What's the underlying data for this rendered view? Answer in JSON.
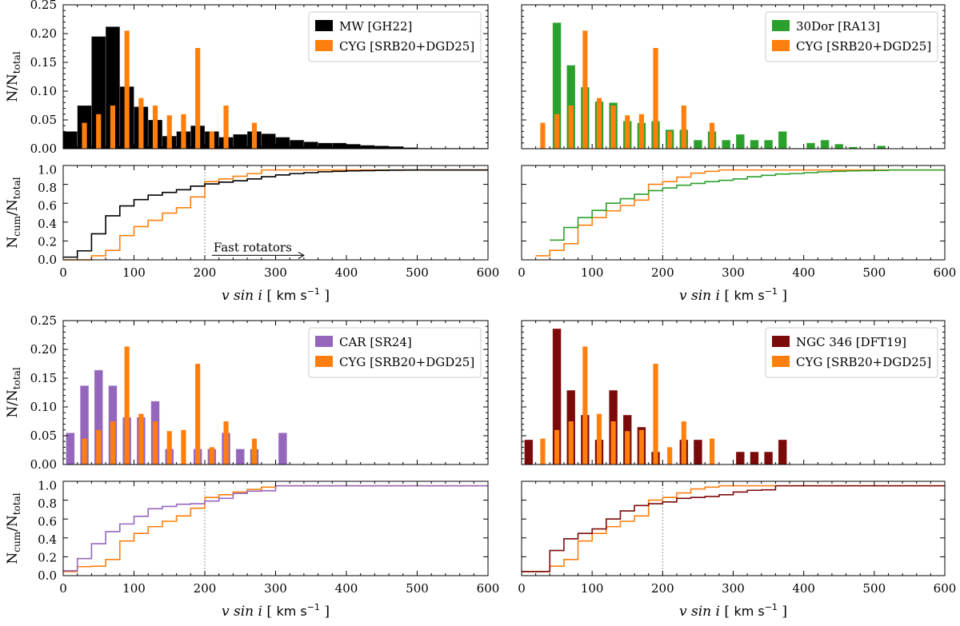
{
  "figure": {
    "colors": {
      "MW": "#000000",
      "30Dor": "#2ca02c",
      "CAR": "#9467bd",
      "NGC346": "#7b0a0a",
      "CYG": "#ff7f0e",
      "refline": "#888888"
    }
  },
  "chart_data": [
    {
      "type": "bar",
      "panel": "top-left-histogram",
      "xlim": [
        0,
        600
      ],
      "ylim": [
        0,
        0.25
      ],
      "yticks": [
        "0.00",
        "0.05",
        "0.10",
        "0.15",
        "0.20",
        "0.25"
      ],
      "ylabel": {
        "base": "N/N",
        "sub": "total"
      },
      "legend": {
        "placement": "top-right",
        "entries": [
          "MW [GH22]",
          "CYG [SRB20+DGD25]"
        ]
      },
      "series": [
        {
          "name": "MW [GH22]",
          "color_key": "MW",
          "bin_width": 20,
          "x": [
            10,
            30,
            50,
            70,
            90,
            110,
            130,
            150,
            170,
            190,
            210,
            230,
            250,
            270,
            290,
            310,
            330,
            350,
            370,
            390,
            410,
            430,
            450,
            470,
            490,
            510,
            530,
            550,
            570,
            590
          ],
          "values": [
            0.03,
            0.075,
            0.195,
            0.212,
            0.108,
            0.073,
            0.05,
            0.022,
            0.03,
            0.04,
            0.03,
            0.02,
            0.025,
            0.03,
            0.026,
            0.02,
            0.015,
            0.012,
            0.01,
            0.01,
            0.008,
            0.006,
            0.005,
            0.004,
            0.002,
            0.001,
            0.001,
            0.001,
            0.001,
            0.001
          ]
        },
        {
          "name": "CYG [SRB20+DGD25]",
          "color_key": "CYG",
          "bin_width": 7,
          "x": [
            30,
            50,
            70,
            90,
            110,
            130,
            150,
            170,
            190,
            210,
            230,
            270
          ],
          "values": [
            0.045,
            0.06,
            0.075,
            0.205,
            0.088,
            0.075,
            0.058,
            0.06,
            0.175,
            0.03,
            0.075,
            0.045
          ]
        }
      ]
    },
    {
      "type": "line",
      "panel": "top-left-cumulative",
      "xlim": [
        0,
        600
      ],
      "ylim": [
        0,
        1.05
      ],
      "xticks": [
        "0",
        "100",
        "200",
        "300",
        "400",
        "500",
        "600"
      ],
      "yticks": [
        "0.0",
        "0.2",
        "0.4",
        "0.6",
        "0.8",
        "1.0"
      ],
      "xlabel": {
        "main": "v sin i",
        "unit_base": "km s",
        "unit_exp": "−1"
      },
      "ylabel": {
        "base": "N",
        "sub1": "cum",
        "mid": "/N",
        "sub2": "total"
      },
      "vline_x": 200,
      "annotation": {
        "text": "Fast rotators",
        "x_from": 210,
        "x_to": 340,
        "y": 0.05
      },
      "series": [
        {
          "name": "MW [GH22]",
          "color_key": "MW",
          "x": [
            0,
            20,
            40,
            60,
            80,
            100,
            120,
            140,
            160,
            180,
            200,
            220,
            240,
            260,
            280,
            300,
            320,
            340,
            360,
            380,
            400,
            420,
            440,
            460,
            480,
            500,
            520,
            540,
            560,
            600
          ],
          "values": [
            0.03,
            0.1,
            0.29,
            0.49,
            0.6,
            0.67,
            0.72,
            0.75,
            0.78,
            0.82,
            0.845,
            0.865,
            0.88,
            0.9,
            0.925,
            0.945,
            0.96,
            0.97,
            0.98,
            0.985,
            0.99,
            0.993,
            0.996,
            0.998,
            0.999,
            1.0,
            1.0,
            1.0,
            1.0,
            1.0
          ]
        },
        {
          "name": "CYG [SRB20+DGD25]",
          "color_key": "CYG",
          "x": [
            0,
            40,
            60,
            80,
            100,
            120,
            140,
            160,
            180,
            200,
            220,
            240,
            260,
            280,
            600
          ],
          "values": [
            0.0,
            0.045,
            0.105,
            0.27,
            0.37,
            0.44,
            0.52,
            0.58,
            0.7,
            0.87,
            0.9,
            0.93,
            0.96,
            1.0,
            1.0
          ]
        }
      ]
    },
    {
      "type": "bar",
      "panel": "top-right-histogram",
      "xlim": [
        0,
        600
      ],
      "ylim": [
        0,
        0.25
      ],
      "legend": {
        "placement": "top-right",
        "entries": [
          "30Dor [RA13]",
          "CYG [SRB20+DGD25]"
        ]
      },
      "series": [
        {
          "name": "30Dor [RA13]",
          "color_key": "30Dor",
          "bin_width": 12,
          "x": [
            50,
            70,
            90,
            110,
            130,
            150,
            170,
            190,
            210,
            230,
            250,
            270,
            290,
            310,
            330,
            350,
            370,
            390,
            410,
            430,
            450,
            470,
            510
          ],
          "values": [
            0.219,
            0.145,
            0.107,
            0.082,
            0.08,
            0.048,
            0.045,
            0.048,
            0.033,
            0.033,
            0.015,
            0.03,
            0.015,
            0.025,
            0.015,
            0.015,
            0.03,
            0.001,
            0.01,
            0.015,
            0.008,
            0.003,
            0.005
          ]
        },
        {
          "name": "CYG [SRB20+DGD25]",
          "color_key": "CYG",
          "bin_width": 7,
          "x": [
            30,
            50,
            70,
            90,
            110,
            130,
            150,
            170,
            190,
            210,
            230,
            270
          ],
          "values": [
            0.045,
            0.06,
            0.075,
            0.205,
            0.088,
            0.075,
            0.058,
            0.06,
            0.175,
            0.03,
            0.075,
            0.045
          ]
        }
      ]
    },
    {
      "type": "line",
      "panel": "top-right-cumulative",
      "xlim": [
        0,
        600
      ],
      "ylim": [
        0,
        1.05
      ],
      "xticks": [
        "0",
        "100",
        "200",
        "300",
        "400",
        "500",
        "600"
      ],
      "xlabel": {
        "main": "v sin i",
        "unit_base": "km s",
        "unit_exp": "−1"
      },
      "vline_x": 200,
      "series": [
        {
          "name": "30Dor [RA13]",
          "color_key": "30Dor",
          "x": [
            40,
            60,
            80,
            100,
            120,
            140,
            160,
            180,
            200,
            220,
            240,
            260,
            280,
            300,
            320,
            340,
            360,
            380,
            400,
            420,
            440,
            460,
            480,
            500,
            520,
            600
          ],
          "values": [
            0.22,
            0.36,
            0.47,
            0.55,
            0.63,
            0.68,
            0.73,
            0.77,
            0.8,
            0.83,
            0.85,
            0.87,
            0.885,
            0.9,
            0.925,
            0.94,
            0.955,
            0.96,
            0.97,
            0.98,
            0.985,
            0.99,
            0.993,
            0.995,
            1.0,
            1.0
          ]
        },
        {
          "name": "CYG [SRB20+DGD25]",
          "color_key": "CYG",
          "x": [
            20,
            40,
            60,
            80,
            100,
            120,
            140,
            160,
            180,
            200,
            220,
            240,
            260,
            280,
            600
          ],
          "values": [
            0.045,
            0.105,
            0.18,
            0.385,
            0.47,
            0.545,
            0.605,
            0.665,
            0.84,
            0.87,
            0.92,
            0.965,
            0.985,
            1.0,
            1.0
          ]
        }
      ]
    },
    {
      "type": "bar",
      "panel": "bottom-left-histogram",
      "xlim": [
        0,
        600
      ],
      "ylim": [
        0,
        0.25
      ],
      "yticks": [
        "0.00",
        "0.05",
        "0.10",
        "0.15",
        "0.20",
        "0.25"
      ],
      "ylabel": {
        "base": "N/N",
        "sub": "total"
      },
      "legend": {
        "placement": "top-right",
        "entries": [
          "CAR [SR24]",
          "CYG [SRB20+DGD25]"
        ]
      },
      "series": [
        {
          "name": "CAR [SR24]",
          "color_key": "CAR",
          "bin_width": 12,
          "x": [
            10,
            30,
            50,
            70,
            90,
            110,
            130,
            150,
            170,
            190,
            210,
            230,
            250,
            270,
            310
          ],
          "values": [
            0.055,
            0.137,
            0.164,
            0.137,
            0.082,
            0.082,
            0.11,
            0.027,
            0.001,
            0.027,
            0.027,
            0.055,
            0.027,
            0.027,
            0.055
          ]
        },
        {
          "name": "CYG [SRB20+DGD25]",
          "color_key": "CYG",
          "bin_width": 7,
          "x": [
            30,
            50,
            70,
            90,
            110,
            130,
            150,
            170,
            190,
            210,
            230,
            270
          ],
          "values": [
            0.045,
            0.06,
            0.075,
            0.205,
            0.088,
            0.075,
            0.058,
            0.06,
            0.175,
            0.03,
            0.075,
            0.045
          ]
        }
      ]
    },
    {
      "type": "line",
      "panel": "bottom-left-cumulative",
      "xlim": [
        0,
        600
      ],
      "ylim": [
        0,
        1.05
      ],
      "xticks": [
        "0",
        "100",
        "200",
        "300",
        "400",
        "500",
        "600"
      ],
      "yticks": [
        "0.0",
        "0.2",
        "0.4",
        "0.6",
        "0.8",
        "1.0"
      ],
      "xlabel": {
        "main": "v sin i",
        "unit_base": "km s",
        "unit_exp": "−1"
      },
      "ylabel": {
        "base": "N",
        "sub1": "cum",
        "mid": "/N",
        "sub2": "total"
      },
      "vline_x": 200,
      "series": [
        {
          "name": "CAR [SR24]",
          "color_key": "CAR",
          "x": [
            0,
            20,
            40,
            60,
            80,
            100,
            120,
            140,
            160,
            180,
            200,
            220,
            240,
            260,
            280,
            300,
            600
          ],
          "values": [
            0.055,
            0.19,
            0.355,
            0.49,
            0.575,
            0.66,
            0.745,
            0.77,
            0.795,
            0.8,
            0.83,
            0.86,
            0.915,
            0.94,
            0.945,
            1.0,
            1.0
          ]
        },
        {
          "name": "CYG [SRB20+DGD25]",
          "color_key": "CYG",
          "x": [
            0,
            20,
            40,
            60,
            80,
            100,
            120,
            140,
            160,
            180,
            200,
            220,
            240,
            260,
            280,
            300,
            600
          ],
          "values": [
            0.045,
            0.1,
            0.105,
            0.18,
            0.385,
            0.47,
            0.545,
            0.605,
            0.665,
            0.75,
            0.87,
            0.9,
            0.93,
            0.96,
            0.985,
            1.0,
            1.0
          ]
        }
      ]
    },
    {
      "type": "bar",
      "panel": "bottom-right-histogram",
      "xlim": [
        0,
        600
      ],
      "ylim": [
        0,
        0.25
      ],
      "legend": {
        "placement": "top-right",
        "entries": [
          "NGC 346 [DFT19]",
          "CYG [SRB20+DGD25]"
        ]
      },
      "series": [
        {
          "name": "NGC 346 [DFT19]",
          "color_key": "NGC346",
          "bin_width": 12,
          "x": [
            10,
            50,
            70,
            90,
            110,
            130,
            150,
            170,
            190,
            230,
            250,
            310,
            330,
            350,
            370
          ],
          "values": [
            0.043,
            0.236,
            0.129,
            0.086,
            0.043,
            0.129,
            0.086,
            0.065,
            0.022,
            0.043,
            0.043,
            0.022,
            0.022,
            0.022,
            0.043
          ]
        },
        {
          "name": "CYG [SRB20+DGD25]",
          "color_key": "CYG",
          "bin_width": 7,
          "x": [
            30,
            50,
            70,
            90,
            110,
            130,
            150,
            170,
            190,
            210,
            230,
            270
          ],
          "values": [
            0.045,
            0.06,
            0.075,
            0.205,
            0.088,
            0.075,
            0.058,
            0.06,
            0.175,
            0.03,
            0.075,
            0.045
          ]
        }
      ]
    },
    {
      "type": "line",
      "panel": "bottom-right-cumulative",
      "xlim": [
        0,
        600
      ],
      "ylim": [
        0,
        1.05
      ],
      "xticks": [
        "0",
        "100",
        "200",
        "300",
        "400",
        "500",
        "600"
      ],
      "xlabel": {
        "main": "v sin i",
        "unit_base": "km s",
        "unit_exp": "−1"
      },
      "vline_x": 200,
      "series": [
        {
          "name": "NGC 346 [DFT19]",
          "color_key": "NGC346",
          "x": [
            0,
            40,
            60,
            80,
            100,
            120,
            140,
            160,
            180,
            200,
            220,
            240,
            260,
            280,
            300,
            320,
            340,
            360,
            600
          ],
          "values": [
            0.045,
            0.28,
            0.41,
            0.47,
            0.52,
            0.63,
            0.72,
            0.78,
            0.8,
            0.82,
            0.86,
            0.87,
            0.88,
            0.9,
            0.93,
            0.95,
            0.955,
            1.0,
            1.0
          ]
        },
        {
          "name": "CYG [SRB20+DGD25]",
          "color_key": "CYG",
          "x": [
            0,
            20,
            40,
            60,
            80,
            100,
            120,
            140,
            160,
            180,
            200,
            220,
            240,
            260,
            280,
            600
          ],
          "values": [
            0.045,
            0.045,
            0.105,
            0.18,
            0.385,
            0.47,
            0.545,
            0.605,
            0.665,
            0.84,
            0.87,
            0.92,
            0.965,
            0.985,
            1.0,
            1.0
          ]
        }
      ]
    }
  ]
}
